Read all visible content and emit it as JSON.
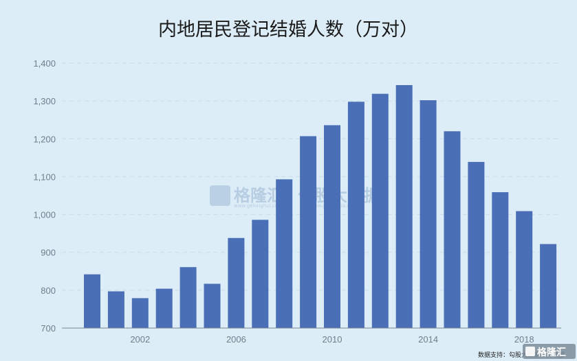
{
  "chart_data": {
    "type": "bar",
    "title": "内地居民登记结婚人数（万对）",
    "xlabel": "",
    "ylabel": "",
    "x": [
      2000,
      2001,
      2002,
      2003,
      2004,
      2005,
      2006,
      2007,
      2008,
      2009,
      2010,
      2011,
      2012,
      2013,
      2014,
      2015,
      2016,
      2017,
      2018,
      2019
    ],
    "values": [
      842,
      797,
      779,
      804,
      861,
      817,
      938,
      986,
      1093,
      1207,
      1236,
      1298,
      1319,
      1342,
      1302,
      1220,
      1139,
      1059,
      1009,
      922
    ],
    "x_tick_labels": [
      "2002",
      "2006",
      "2010",
      "2014",
      "2018"
    ],
    "y_tick_labels": [
      "700",
      "800",
      "900",
      "1,000",
      "1,100",
      "1,200",
      "1,300",
      "1,400"
    ],
    "ylim": [
      700,
      1400
    ],
    "grid": true,
    "legend": "none",
    "bar_color": "#4a6fb6"
  },
  "watermark": {
    "logo_text": "格隆汇",
    "logo_url_text": "www.gelonghui.com",
    "data_text": "勾股大数据",
    "data_url_text": "www.gogudata.com"
  },
  "footer": {
    "source_text": "数据支持：勾股大数据，民政部",
    "logo_text": "格隆汇"
  }
}
